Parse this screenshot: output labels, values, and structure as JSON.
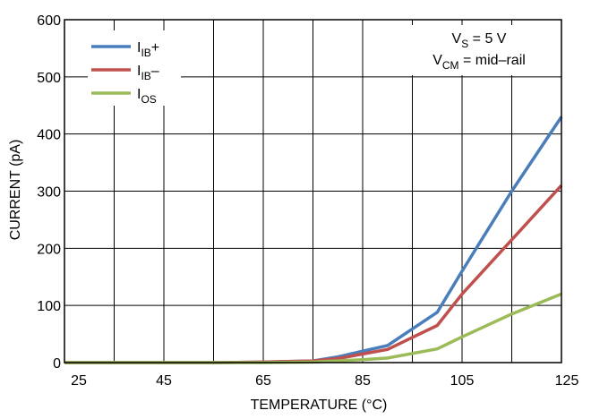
{
  "chart_data": {
    "type": "line",
    "xlabel": "TEMPERATURE (°C)",
    "ylabel": "CURRENT (pA)",
    "xlim": [
      25,
      125
    ],
    "ylim": [
      0,
      600
    ],
    "xticks": [
      25,
      45,
      65,
      85,
      105,
      125
    ],
    "yticks": [
      0,
      100,
      200,
      300,
      400,
      500,
      600
    ],
    "grid": true,
    "legend_position": "top-left",
    "annotation": {
      "line1": {
        "main": "V",
        "sub": "S",
        "rest": " = 5 V"
      },
      "line2": {
        "main": "V",
        "sub": "CM",
        "rest": " = mid–rail"
      }
    },
    "series": [
      {
        "name": "IIB+",
        "label": {
          "main": "I",
          "sub": "IB",
          "suffix": "+"
        },
        "color": "#4a7ebb",
        "x": [
          25,
          45,
          55,
          65,
          75,
          80,
          85,
          90,
          100,
          105,
          115,
          125
        ],
        "y": [
          0,
          0,
          0,
          1,
          3,
          10,
          20,
          30,
          88,
          160,
          300,
          430
        ]
      },
      {
        "name": "IIB-",
        "label": {
          "main": "I",
          "sub": "IB",
          "suffix": "–"
        },
        "color": "#c0504d",
        "x": [
          25,
          45,
          55,
          65,
          75,
          80,
          85,
          90,
          100,
          105,
          115,
          125
        ],
        "y": [
          0,
          0,
          0,
          1,
          3,
          7,
          15,
          23,
          65,
          120,
          215,
          310
        ]
      },
      {
        "name": "IOS",
        "label": {
          "main": "I",
          "sub": "OS",
          "suffix": ""
        },
        "color": "#9bbb59",
        "x": [
          25,
          45,
          55,
          65,
          75,
          80,
          85,
          90,
          100,
          105,
          115,
          125
        ],
        "y": [
          0,
          0,
          0,
          0,
          1,
          3,
          5,
          8,
          24,
          45,
          85,
          120
        ]
      }
    ]
  }
}
